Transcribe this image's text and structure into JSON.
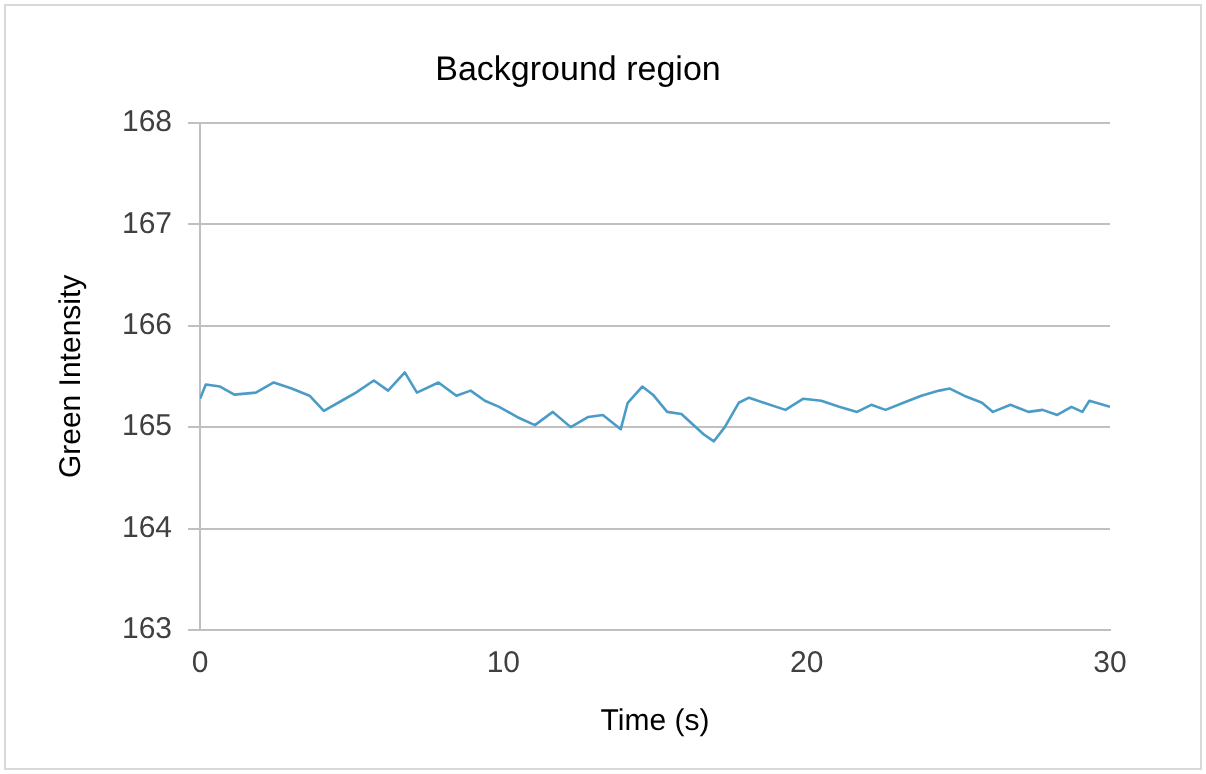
{
  "chart_data": {
    "type": "line",
    "title": "Background region",
    "xlabel": "Time (s)",
    "ylabel": "Green Intensity",
    "xlim": [
      0,
      30
    ],
    "xticks": [
      0,
      10,
      20,
      30
    ],
    "ylim": [
      163,
      168
    ],
    "yticks": [
      163,
      164,
      165,
      166,
      167,
      168
    ],
    "grid": "y",
    "marker": "none",
    "line_style": "solid",
    "series": [
      {
        "color": "#4a9cc7",
        "x": [
          0,
          0.19,
          0.66,
          1.13,
          1.84,
          2.43,
          3.02,
          3.61,
          4.08,
          4.67,
          5.14,
          5.73,
          6.2,
          6.75,
          7.15,
          7.86,
          8.45,
          8.92,
          9.39,
          9.86,
          10.45,
          11.04,
          11.63,
          12.22,
          12.8,
          13.28,
          13.87,
          14.1,
          14.58,
          14.93,
          15.4,
          15.87,
          16.23,
          16.6,
          16.94,
          17.3,
          17.76,
          18.1,
          18.59,
          19.3,
          19.89,
          20.48,
          21.07,
          21.66,
          22.13,
          22.6,
          23.19,
          23.78,
          24.37,
          24.72,
          25.19,
          25.78,
          26.14,
          26.72,
          27.31,
          27.78,
          28.26,
          28.73,
          29.09,
          29.32,
          30
        ],
        "values": [
          165.28,
          165.42,
          165.4,
          165.32,
          165.34,
          165.44,
          165.38,
          165.31,
          165.16,
          165.26,
          165.34,
          165.46,
          165.36,
          165.54,
          165.34,
          165.44,
          165.31,
          165.36,
          165.26,
          165.2,
          165.1,
          165.02,
          165.15,
          165.0,
          165.1,
          165.12,
          164.98,
          165.24,
          165.4,
          165.32,
          165.15,
          165.13,
          165.03,
          164.93,
          164.86,
          165.0,
          165.24,
          165.29,
          165.24,
          165.17,
          165.28,
          165.26,
          165.2,
          165.15,
          165.22,
          165.17,
          165.24,
          165.31,
          165.36,
          165.38,
          165.31,
          165.24,
          165.15,
          165.22,
          165.15,
          165.17,
          165.12,
          165.2,
          165.15,
          165.26,
          165.2
        ]
      }
    ]
  }
}
